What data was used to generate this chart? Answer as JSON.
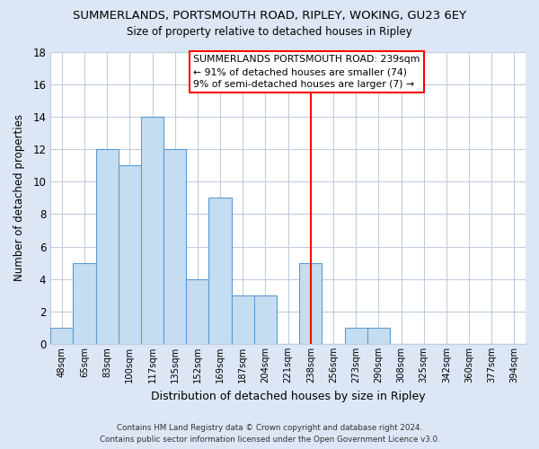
{
  "title": "SUMMERLANDS, PORTSMOUTH ROAD, RIPLEY, WOKING, GU23 6EY",
  "subtitle": "Size of property relative to detached houses in Ripley",
  "xlabel": "Distribution of detached houses by size in Ripley",
  "ylabel": "Number of detached properties",
  "bar_labels": [
    "48sqm",
    "65sqm",
    "83sqm",
    "100sqm",
    "117sqm",
    "135sqm",
    "152sqm",
    "169sqm",
    "187sqm",
    "204sqm",
    "221sqm",
    "238sqm",
    "256sqm",
    "273sqm",
    "290sqm",
    "308sqm",
    "325sqm",
    "342sqm",
    "360sqm",
    "377sqm",
    "394sqm"
  ],
  "bar_values": [
    1,
    5,
    12,
    11,
    14,
    12,
    4,
    9,
    3,
    3,
    0,
    5,
    0,
    1,
    1,
    0,
    0,
    0,
    0,
    0,
    0
  ],
  "bar_color": "#c5ddf0",
  "bar_edge_color": "#5b9bd5",
  "ylim": [
    0,
    18
  ],
  "yticks": [
    0,
    2,
    4,
    6,
    8,
    10,
    12,
    14,
    16,
    18
  ],
  "reference_line_index": 11,
  "annotation_title": "SUMMERLANDS PORTSMOUTH ROAD: 239sqm",
  "annotation_line1": "← 91% of detached houses are smaller (74)",
  "annotation_line2": "9% of semi-detached houses are larger (7) →",
  "footer_line1": "Contains HM Land Registry data © Crown copyright and database right 2024.",
  "footer_line2": "Contains public sector information licensed under the Open Government Licence v3.0.",
  "fig_background_color": "#dce6f5",
  "plot_background_color": "#ffffff",
  "grid_color": "#c0cce0"
}
